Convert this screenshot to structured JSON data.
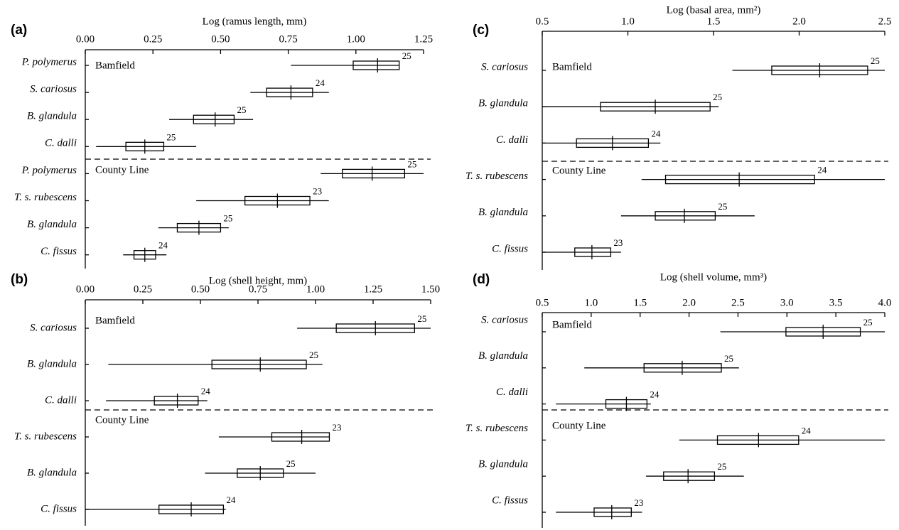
{
  "chart_data": [
    {
      "type": "box",
      "panel_label": "(a)",
      "x_label": "Log (ramus length, mm)",
      "xlim": [
        0,
        1.25
      ],
      "xticks": [
        {
          "value": 0,
          "label": "0.00"
        },
        0.25,
        {
          "value": 0.5,
          "label": "0.50"
        },
        0.75,
        {
          "value": 1,
          "label": "1.00"
        },
        1.25
      ],
      "groups": [
        {
          "name": "Bamfield",
          "categories": [
            {
              "name": "P. polymerus",
              "low": 0.76,
              "q1": 0.99,
              "median": 1.08,
              "q3": 1.16,
              "high": 1.16,
              "n": 25
            },
            {
              "name": "S. cariosus",
              "low": 0.61,
              "q1": 0.67,
              "median": 0.76,
              "q3": 0.84,
              "high": 0.9,
              "n": 24
            },
            {
              "name": "B. glandula",
              "low": 0.31,
              "q1": 0.4,
              "median": 0.48,
              "q3": 0.55,
              "high": 0.62,
              "n": 25
            },
            {
              "name": "C. dalli",
              "low": 0.04,
              "q1": 0.15,
              "median": 0.22,
              "q3": 0.29,
              "high": 0.41,
              "n": 25
            }
          ]
        },
        {
          "name": "County Line",
          "categories": [
            {
              "name": "P. polymerus",
              "low": 0.87,
              "q1": 0.95,
              "median": 1.06,
              "q3": 1.18,
              "high": 1.25,
              "n": 25
            },
            {
              "name": "T. s. rubescens",
              "low": 0.41,
              "q1": 0.59,
              "median": 0.71,
              "q3": 0.83,
              "high": 0.9,
              "n": 23
            },
            {
              "name": "B. glandula",
              "low": 0.27,
              "q1": 0.34,
              "median": 0.42,
              "q3": 0.5,
              "high": 0.53,
              "n": 25
            },
            {
              "name": "C. fissus",
              "low": 0.14,
              "q1": 0.18,
              "median": 0.22,
              "q3": 0.26,
              "high": 0.3,
              "n": 24
            }
          ]
        }
      ]
    },
    {
      "type": "box",
      "panel_label": "(b)",
      "x_label": "Log (shell height, mm)",
      "xlim": [
        0,
        1.5
      ],
      "xticks": [
        {
          "value": 0,
          "label": "0.00"
        },
        0.25,
        {
          "value": 0.5,
          "label": "0.50"
        },
        0.75,
        {
          "value": 1,
          "label": "1.00"
        },
        1.25,
        {
          "value": 1.5,
          "label": "1.50"
        }
      ],
      "groups": [
        {
          "name": "Bamfield",
          "categories": [
            {
              "name": "S. cariosus",
              "low": 0.92,
              "q1": 1.09,
              "median": 1.26,
              "q3": 1.43,
              "high": 1.5,
              "n": 25
            },
            {
              "name": "B. glandula",
              "low": 0.1,
              "q1": 0.55,
              "median": 0.76,
              "q3": 0.96,
              "high": 1.03,
              "n": 25
            },
            {
              "name": "C. dalli",
              "low": 0.09,
              "q1": 0.3,
              "median": 0.4,
              "q3": 0.49,
              "high": 0.53,
              "n": 24
            }
          ]
        },
        {
          "name": "County Line",
          "categories": [
            {
              "name": "T. s. rubescens",
              "low": 0.58,
              "q1": 0.81,
              "median": 0.94,
              "q3": 1.06,
              "high": 1.06,
              "n": 23
            },
            {
              "name": "B. glandula",
              "low": 0.52,
              "q1": 0.66,
              "median": 0.76,
              "q3": 0.86,
              "high": 1.0,
              "n": 25
            },
            {
              "name": "C. fissus",
              "low": 0.0,
              "q1": 0.32,
              "median": 0.46,
              "q3": 0.6,
              "high": 0.61,
              "n": 24
            }
          ]
        }
      ]
    },
    {
      "type": "box",
      "panel_label": "(c)",
      "x_label": "Log (basal area, mm²)",
      "xlim": [
        0.5,
        2.5
      ],
      "xticks": [
        0.5,
        {
          "value": 1,
          "label": "1.0"
        },
        1.5,
        {
          "value": 2,
          "label": "2.0"
        },
        2.5
      ],
      "groups": [
        {
          "name": "Bamfield",
          "categories": [
            {
              "name": "S. cariosus",
              "low": 1.61,
              "q1": 1.84,
              "median": 2.12,
              "q3": 2.4,
              "high": 2.5,
              "n": 25
            },
            {
              "name": "B. glandula",
              "low": 0.5,
              "q1": 0.84,
              "median": 1.16,
              "q3": 1.48,
              "high": 1.53,
              "n": 25
            },
            {
              "name": "C. dalli",
              "low": 0.5,
              "q1": 0.7,
              "median": 0.91,
              "q3": 1.12,
              "high": 1.19,
              "n": 24
            }
          ]
        },
        {
          "name": "County Line",
          "categories": [
            {
              "name": "T. s. rubescens",
              "low": 1.08,
              "q1": 1.22,
              "median": 1.65,
              "q3": 2.09,
              "high": 2.5,
              "n": 24
            },
            {
              "name": "B. glandula",
              "low": 0.96,
              "q1": 1.16,
              "median": 1.33,
              "q3": 1.51,
              "high": 1.74,
              "n": 25
            },
            {
              "name": "C. fissus",
              "low": 0.5,
              "q1": 0.69,
              "median": 0.79,
              "q3": 0.9,
              "high": 0.96,
              "n": 23
            }
          ]
        }
      ]
    },
    {
      "type": "box",
      "panel_label": "(d)",
      "x_label": "Log (shell volume, mm³)",
      "xlim": [
        0.5,
        4.0
      ],
      "xticks": [
        0.5,
        {
          "value": 1,
          "label": "1.0"
        },
        1.5,
        {
          "value": 2,
          "label": "2.0"
        },
        2.5,
        {
          "value": 3,
          "label": "3.0"
        },
        3.5,
        {
          "value": 4,
          "label": "4.0"
        }
      ],
      "groups": [
        {
          "name": "Bamfield",
          "categories": [
            {
              "name": "S. cariosus",
              "low": 2.32,
              "q1": 2.99,
              "median": 3.37,
              "q3": 3.75,
              "high": 4.0,
              "n": 25
            },
            {
              "name": "B. glandula",
              "low": 0.93,
              "q1": 1.54,
              "median": 1.93,
              "q3": 2.33,
              "high": 2.51,
              "n": 25
            },
            {
              "name": "C. dalli",
              "low": 0.64,
              "q1": 1.15,
              "median": 1.36,
              "q3": 1.57,
              "high": 1.61,
              "n": 24
            }
          ]
        },
        {
          "name": "County Line",
          "categories": [
            {
              "name": "T. s. rubescens",
              "low": 1.9,
              "q1": 2.29,
              "median": 2.71,
              "q3": 3.12,
              "high": 4.0,
              "n": 24
            },
            {
              "name": "B. glandula",
              "low": 1.56,
              "q1": 1.74,
              "median": 1.99,
              "q3": 2.26,
              "high": 2.56,
              "n": 25
            },
            {
              "name": "C. fissus",
              "low": 0.64,
              "q1": 1.03,
              "median": 1.21,
              "q3": 1.41,
              "high": 1.52,
              "n": 23
            }
          ]
        }
      ]
    }
  ]
}
